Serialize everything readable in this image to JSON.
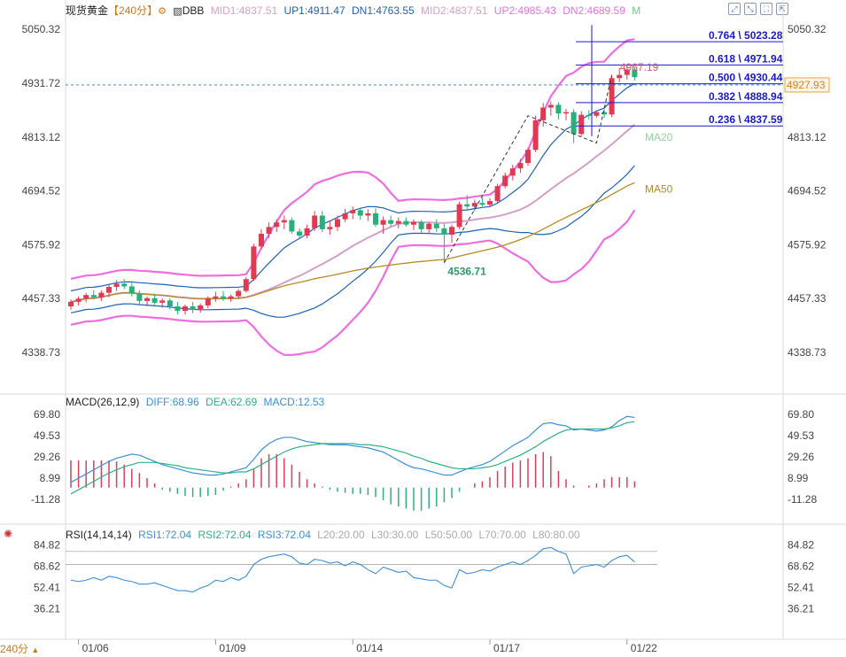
{
  "header": {
    "instrument": "现货黄金",
    "period": "240分",
    "indicator": "DBB",
    "mid1": "MID1:4837.51",
    "up1": "UP1:4911.47",
    "dn1": "DN1:4763.55",
    "mid2": "MID2:4837.51",
    "up2": "UP2:4985.43",
    "dn2": "DN2:4689.59",
    "m": "M"
  },
  "macd_header": {
    "name": "MACD(26,12,9)",
    "diff": "DIFF:68.96",
    "dea": "DEA:62.69",
    "macd": "MACD:12.53"
  },
  "rsi_header": {
    "name": "RSI(14,14,14)",
    "rsi1": "RSI1:72.04",
    "rsi2": "RSI2:72.04",
    "rsi3": "RSI3:72.04",
    "l20": "L20:20.00",
    "l30": "L30:30.00",
    "l50": "L50:50.00",
    "l70": "L70:70.00",
    "l80": "L80:80.00"
  },
  "timeframe_button": "240分",
  "colors": {
    "up": "#e03a52",
    "down": "#27b07a",
    "boll_outer": "#ee6ee0",
    "mid": "#d4a0c8",
    "ma50": "#b88a24",
    "inner_band": "#1c62b8",
    "fib": "#1a1acc",
    "diff": "#3d8fd8",
    "dea": "#2eb08a"
  },
  "chart_data": {
    "type": "candlestick",
    "price_axis": [
      "5050.32",
      "4931.72",
      "4813.12",
      "4694.52",
      "4575.92",
      "4457.33",
      "4338.73"
    ],
    "price_range": [
      4280,
      5080
    ],
    "date_labels": [
      {
        "label": "01/06",
        "index": 1
      },
      {
        "label": "01/09",
        "index": 19
      },
      {
        "label": "01/14",
        "index": 37
      },
      {
        "label": "01/17",
        "index": 55
      },
      {
        "label": "01/22",
        "index": 73
      }
    ],
    "candles": [
      [
        4440,
        4455,
        4433,
        4450
      ],
      [
        4450,
        4462,
        4442,
        4457
      ],
      [
        4457,
        4470,
        4449,
        4465
      ],
      [
        4465,
        4476,
        4455,
        4460
      ],
      [
        4460,
        4475,
        4452,
        4470
      ],
      [
        4470,
        4488,
        4460,
        4483
      ],
      [
        4483,
        4498,
        4474,
        4490
      ],
      [
        4490,
        4500,
        4478,
        4484
      ],
      [
        4484,
        4492,
        4462,
        4468
      ],
      [
        4468,
        4475,
        4444,
        4452
      ],
      [
        4452,
        4462,
        4440,
        4458
      ],
      [
        4458,
        4468,
        4443,
        4448
      ],
      [
        4448,
        4458,
        4437,
        4453
      ],
      [
        4453,
        4458,
        4433,
        4440
      ],
      [
        4440,
        4450,
        4422,
        4430
      ],
      [
        4430,
        4444,
        4422,
        4440
      ],
      [
        4440,
        4450,
        4425,
        4432
      ],
      [
        4432,
        4446,
        4426,
        4442
      ],
      [
        4442,
        4462,
        4436,
        4458
      ],
      [
        4458,
        4472,
        4450,
        4462
      ],
      [
        4462,
        4474,
        4452,
        4457
      ],
      [
        4457,
        4466,
        4450,
        4462
      ],
      [
        4462,
        4478,
        4456,
        4474
      ],
      [
        4474,
        4505,
        4470,
        4500
      ],
      [
        4500,
        4578,
        4496,
        4572
      ],
      [
        4572,
        4610,
        4566,
        4600
      ],
      [
        4600,
        4625,
        4590,
        4615
      ],
      [
        4615,
        4632,
        4604,
        4625
      ],
      [
        4625,
        4640,
        4610,
        4630
      ],
      [
        4630,
        4636,
        4600,
        4605
      ],
      [
        4605,
        4612,
        4588,
        4596
      ],
      [
        4596,
        4620,
        4590,
        4612
      ],
      [
        4612,
        4650,
        4606,
        4640
      ],
      [
        4640,
        4650,
        4604,
        4610
      ],
      [
        4610,
        4628,
        4598,
        4615
      ],
      [
        4615,
        4640,
        4606,
        4632
      ],
      [
        4632,
        4655,
        4626,
        4645
      ],
      [
        4645,
        4660,
        4632,
        4652
      ],
      [
        4652,
        4658,
        4630,
        4640
      ],
      [
        4640,
        4654,
        4628,
        4645
      ],
      [
        4645,
        4656,
        4615,
        4620
      ],
      [
        4620,
        4638,
        4600,
        4630
      ],
      [
        4630,
        4640,
        4616,
        4622
      ],
      [
        4622,
        4636,
        4612,
        4628
      ],
      [
        4628,
        4636,
        4616,
        4620
      ],
      [
        4620,
        4632,
        4608,
        4626
      ],
      [
        4626,
        4630,
        4602,
        4610
      ],
      [
        4610,
        4626,
        4600,
        4622
      ],
      [
        4622,
        4632,
        4604,
        4612
      ],
      [
        4612,
        4622,
        4536,
        4598
      ],
      [
        4598,
        4620,
        4580,
        4615
      ],
      [
        4615,
        4670,
        4610,
        4665
      ],
      [
        4665,
        4685,
        4650,
        4660
      ],
      [
        4660,
        4675,
        4650,
        4668
      ],
      [
        4668,
        4680,
        4660,
        4664
      ],
      [
        4664,
        4678,
        4658,
        4672
      ],
      [
        4672,
        4710,
        4668,
        4705
      ],
      [
        4705,
        4735,
        4700,
        4728
      ],
      [
        4728,
        4752,
        4718,
        4744
      ],
      [
        4744,
        4765,
        4734,
        4756
      ],
      [
        4756,
        4790,
        4750,
        4785
      ],
      [
        4785,
        4860,
        4780,
        4850
      ],
      [
        4850,
        4888,
        4836,
        4878
      ],
      [
        4878,
        4892,
        4860,
        4884
      ],
      [
        4884,
        4890,
        4852,
        4865
      ],
      [
        4865,
        4875,
        4850,
        4868
      ],
      [
        4868,
        4875,
        4800,
        4820
      ],
      [
        4820,
        4870,
        4815,
        4862
      ],
      [
        4862,
        4872,
        4852,
        4860
      ],
      [
        4860,
        4872,
        4856,
        4868
      ],
      [
        4868,
        4875,
        4855,
        4863
      ],
      [
        4863,
        4950,
        4857,
        4943
      ],
      [
        4943,
        4965,
        4934,
        4950
      ],
      [
        4950,
        4970,
        4940,
        4962
      ],
      [
        4962,
        4967,
        4938,
        4945
      ]
    ],
    "labels": {
      "high": "4967.19",
      "low": "4536.71",
      "last_price": "4927.93",
      "ma20": "MA20",
      "ma50": "MA50"
    },
    "fibonacci": [
      {
        "ratio": "0.764",
        "price": 5023.28,
        "label": "0.764 \\ 5023.28"
      },
      {
        "ratio": "0.618",
        "price": 4971.94,
        "label": "0.618 \\ 4971.94"
      },
      {
        "ratio": "0.500",
        "price": 4930.44,
        "label": "0.500 \\ 4930.44"
      },
      {
        "ratio": "0.382",
        "price": 4888.94,
        "label": "0.382 \\ 4888.94"
      },
      {
        "ratio": "0.236",
        "price": 4837.59,
        "label": "0.236 \\ 4837.59"
      }
    ],
    "macd": {
      "axis": [
        "69.80",
        "49.53",
        "29.26",
        "8.99",
        "-11.28"
      ],
      "range": [
        -18,
        75
      ],
      "diff": [
        5,
        9,
        13,
        17,
        21,
        25,
        28,
        30,
        32,
        31,
        28,
        25,
        22,
        20,
        18,
        16,
        14,
        13,
        12,
        12,
        13,
        15,
        17,
        19,
        27,
        36,
        42,
        46,
        48,
        48,
        46,
        44,
        43,
        42,
        41,
        41,
        41,
        40,
        39,
        38,
        36,
        34,
        30,
        26,
        22,
        19,
        18,
        16,
        14,
        12,
        12,
        15,
        18,
        20,
        22,
        25,
        30,
        35,
        40,
        44,
        48,
        55,
        61,
        62,
        60,
        59,
        55,
        56,
        55,
        54,
        55,
        58,
        64,
        68,
        67
      ],
      "dea": [
        -6,
        -2,
        2,
        6,
        10,
        14,
        17,
        20,
        22,
        24,
        24,
        24,
        23,
        22,
        21,
        19,
        18,
        17,
        16,
        15,
        14,
        14,
        15,
        15,
        18,
        22,
        26,
        30,
        34,
        37,
        39,
        40,
        41,
        42,
        42,
        42,
        42,
        42,
        41,
        41,
        40,
        39,
        37,
        35,
        33,
        30,
        28,
        25,
        23,
        21,
        19,
        18,
        18,
        18,
        19,
        20,
        22,
        25,
        28,
        31,
        35,
        39,
        44,
        48,
        52,
        55,
        56,
        56,
        56,
        56,
        56,
        57,
        59,
        62,
        63
      ],
      "hist": [
        26,
        26,
        26,
        26,
        26,
        26,
        25,
        22,
        18,
        14,
        9,
        4,
        -2,
        -4,
        -6,
        -8,
        -9,
        -9,
        -8,
        -7,
        -3,
        1,
        4,
        8,
        18,
        28,
        32,
        32,
        28,
        22,
        15,
        8,
        4,
        1,
        -2,
        -4,
        -5,
        -6,
        -6,
        -7,
        -9,
        -12,
        -16,
        -18,
        -20,
        -22,
        -22,
        -20,
        -18,
        -14,
        -10,
        -4,
        0,
        4,
        6,
        10,
        16,
        20,
        24,
        26,
        28,
        32,
        34,
        30,
        16,
        8,
        2,
        0,
        2,
        4,
        8,
        10,
        10,
        10,
        6
      ]
    },
    "rsi": {
      "axis": [
        "84.82",
        "68.62",
        "52.41",
        "36.21"
      ],
      "range": [
        25,
        90
      ],
      "values": [
        58,
        57,
        58,
        60,
        58,
        61,
        60,
        58,
        57,
        55,
        55,
        56,
        54,
        52,
        50,
        50,
        49,
        52,
        54,
        58,
        57,
        60,
        58,
        61,
        70,
        74,
        76,
        77,
        78,
        76,
        71,
        70,
        74,
        73,
        71,
        72,
        69,
        72,
        70,
        66,
        63,
        68,
        66,
        64,
        65,
        60,
        59,
        58,
        58,
        54,
        52,
        66,
        63,
        64,
        66,
        65,
        68,
        70,
        72,
        70,
        73,
        77,
        82,
        83,
        80,
        78,
        63,
        68,
        69,
        70,
        68,
        73,
        76,
        77,
        72
      ]
    }
  }
}
